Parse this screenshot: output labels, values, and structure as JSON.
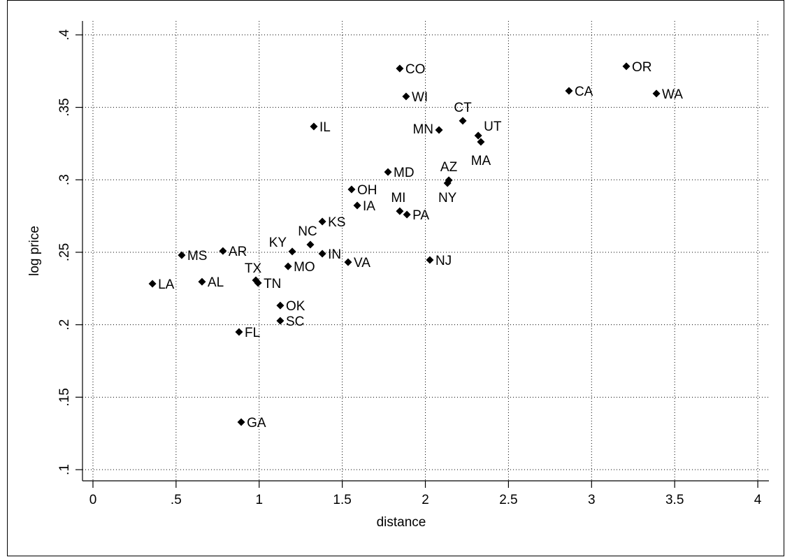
{
  "chart_data": {
    "type": "scatter",
    "x_label": "distance",
    "y_label": "log price",
    "x": [
      3.209,
      2.864,
      3.39,
      1.846,
      1.884,
      2.225,
      2.318,
      2.334,
      2.082,
      1.329,
      1.775,
      2.141,
      2.133,
      1.556,
      1.59,
      1.846,
      1.889,
      1.38,
      1.308,
      1.199,
      1.38,
      1.535,
      2.027,
      1.174,
      0.782,
      0.534,
      0.358,
      0.656,
      0.98,
      0.993,
      1.127,
      1.127,
      0.879,
      0.892
    ],
    "values": [
      0.3783,
      0.3614,
      0.3595,
      0.3768,
      0.3575,
      0.3407,
      0.3305,
      0.3262,
      0.3344,
      0.3368,
      0.3054,
      0.2997,
      0.2977,
      0.2934,
      0.2823,
      0.2784,
      0.276,
      0.2712,
      0.2553,
      0.2505,
      0.249,
      0.2432,
      0.2447,
      0.2403,
      0.2509,
      0.248,
      0.2283,
      0.2297,
      0.2307,
      0.2288,
      0.2133,
      0.2027,
      0.195,
      0.1328
    ],
    "point_labels": [
      "OR",
      "CA",
      "WA",
      "CO",
      "WI",
      "CT",
      "UT",
      "MA",
      "MN",
      "IL",
      "MD",
      "AZ",
      "NY",
      "OH",
      "IA",
      "MI",
      "PA",
      "KS",
      "NC",
      "KY",
      "IN",
      "VA",
      "NJ",
      "MO",
      "AR",
      "MS",
      "LA",
      "AL",
      "TX",
      "TN",
      "OK",
      "SC",
      "FL",
      "GA"
    ],
    "color": "#000000",
    "xlim": [
      -0.063,
      4.067
    ],
    "ylim": [
      0.0923,
      0.4096
    ],
    "xticks": [
      0,
      {
        "value": 0.5,
        "label": ".5"
      },
      1,
      1.5,
      2,
      2.5,
      3,
      3.5,
      4
    ],
    "yticks": [
      {
        "value": 0.1,
        "label": ".1"
      },
      {
        "value": 0.15,
        "label": ".15"
      },
      {
        "value": 0.2,
        "label": ".2"
      },
      {
        "value": 0.25,
        "label": ".25"
      },
      {
        "value": 0.3,
        "label": ".3"
      },
      {
        "value": 0.35,
        "label": ".35"
      },
      {
        "value": 0.4,
        "label": ".4"
      }
    ],
    "grid": true
  }
}
